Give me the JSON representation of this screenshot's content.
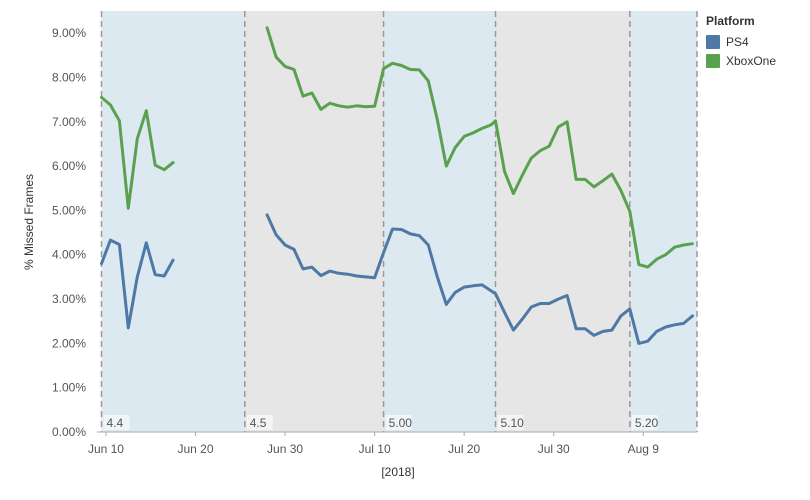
{
  "chart_data": {
    "type": "line",
    "xlabel": "[2018]",
    "ylabel": "% Missed Frames",
    "ylim": [
      0,
      9.5
    ],
    "y_ticks": [
      "0.00%",
      "1.00%",
      "2.00%",
      "3.00%",
      "4.00%",
      "5.00%",
      "6.00%",
      "7.00%",
      "8.00%",
      "9.00%"
    ],
    "x_ticks": [
      {
        "label": "Jun 10",
        "day": 10
      },
      {
        "label": "Jun 20",
        "day": 20
      },
      {
        "label": "Jun 30",
        "day": 30
      },
      {
        "label": "Jul 10",
        "day": 40
      },
      {
        "label": "Jul 20",
        "day": 50
      },
      {
        "label": "Jul 30",
        "day": 60
      },
      {
        "label": "Aug 9",
        "day": 70
      }
    ],
    "x_range": [
      9,
      76
    ],
    "grid": false,
    "legend_position": "top-right",
    "bands": [
      {
        "label": "4.4",
        "start": 9.5,
        "end": 25.5,
        "color": "#dde9f0"
      },
      {
        "label": "4.5",
        "start": 25.5,
        "end": 41,
        "color": "#e6e6e6"
      },
      {
        "label": "5.00",
        "start": 41,
        "end": 53.5,
        "color": "#dde9f0"
      },
      {
        "label": "5.10",
        "start": 53.5,
        "end": 68.5,
        "color": "#e6e6e6"
      },
      {
        "label": "5.20",
        "start": 68.5,
        "end": 76,
        "color": "#dde9f0"
      }
    ],
    "legend": {
      "title": "Platform",
      "items": [
        {
          "name": "PS4",
          "color": "#4e79a7"
        },
        {
          "name": "XboxOne",
          "color": "#59a14f"
        }
      ]
    },
    "series": [
      {
        "name": "XboxOne",
        "color": "#59a14f",
        "segments": [
          [
            [
              9.5,
              7.55
            ],
            [
              10.5,
              7.38
            ],
            [
              11.5,
              7.02
            ],
            [
              12.5,
              5.05
            ],
            [
              13.5,
              6.62
            ],
            [
              14.5,
              7.25
            ],
            [
              15.5,
              6.02
            ],
            [
              16.5,
              5.92
            ],
            [
              17.5,
              6.08
            ]
          ],
          [
            [
              28,
              9.12
            ],
            [
              29,
              8.46
            ],
            [
              30,
              8.25
            ],
            [
              31,
              8.18
            ],
            [
              32,
              7.58
            ],
            [
              33,
              7.65
            ],
            [
              34,
              7.28
            ],
            [
              35,
              7.42
            ],
            [
              36,
              7.36
            ],
            [
              37,
              7.33
            ],
            [
              38,
              7.36
            ],
            [
              39,
              7.34
            ],
            [
              40,
              7.35
            ],
            [
              41,
              8.2
            ],
            [
              42,
              8.32
            ],
            [
              43,
              8.27
            ],
            [
              44,
              8.18
            ],
            [
              45,
              8.17
            ],
            [
              46,
              7.92
            ],
            [
              47,
              7.05
            ],
            [
              48,
              6.0
            ],
            [
              49,
              6.42
            ],
            [
              50,
              6.67
            ],
            [
              51,
              6.75
            ],
            [
              52,
              6.85
            ],
            [
              53,
              6.93
            ],
            [
              53.5,
              7.02
            ],
            [
              54.5,
              5.88
            ],
            [
              55.5,
              5.38
            ],
            [
              56.5,
              5.8
            ],
            [
              57.5,
              6.18
            ],
            [
              58.5,
              6.35
            ],
            [
              59.5,
              6.45
            ],
            [
              60.5,
              6.88
            ],
            [
              61.5,
              7.0
            ],
            [
              62.5,
              5.7
            ],
            [
              63.5,
              5.7
            ],
            [
              64.5,
              5.53
            ],
            [
              65.5,
              5.67
            ],
            [
              66.5,
              5.82
            ],
            [
              67.5,
              5.45
            ],
            [
              68.5,
              4.98
            ],
            [
              69.5,
              3.78
            ],
            [
              70.5,
              3.72
            ],
            [
              71.5,
              3.9
            ],
            [
              72.5,
              4.0
            ],
            [
              73.5,
              4.17
            ],
            [
              74.5,
              4.22
            ],
            [
              75.5,
              4.25
            ]
          ]
        ]
      },
      {
        "name": "PS4",
        "color": "#4e79a7",
        "segments": [
          [
            [
              9.5,
              3.8
            ],
            [
              10.5,
              4.33
            ],
            [
              11.5,
              4.23
            ],
            [
              12.5,
              2.35
            ],
            [
              13.5,
              3.5
            ],
            [
              14.5,
              4.27
            ],
            [
              15.5,
              3.55
            ],
            [
              16.5,
              3.52
            ],
            [
              17.5,
              3.88
            ]
          ],
          [
            [
              28,
              4.9
            ],
            [
              29,
              4.45
            ],
            [
              30,
              4.22
            ],
            [
              31,
              4.12
            ],
            [
              32,
              3.68
            ],
            [
              33,
              3.72
            ],
            [
              34,
              3.53
            ],
            [
              35,
              3.63
            ],
            [
              36,
              3.58
            ],
            [
              37,
              3.56
            ],
            [
              38,
              3.52
            ],
            [
              39,
              3.5
            ],
            [
              40,
              3.48
            ],
            [
              41,
              4.05
            ],
            [
              42,
              4.58
            ],
            [
              43,
              4.57
            ],
            [
              44,
              4.47
            ],
            [
              45,
              4.43
            ],
            [
              46,
              4.22
            ],
            [
              47,
              3.5
            ],
            [
              48,
              2.88
            ],
            [
              49,
              3.15
            ],
            [
              50,
              3.27
            ],
            [
              51,
              3.3
            ],
            [
              52,
              3.32
            ],
            [
              53.5,
              3.12
            ],
            [
              54.5,
              2.7
            ],
            [
              55.5,
              2.3
            ],
            [
              56.5,
              2.55
            ],
            [
              57.5,
              2.82
            ],
            [
              58.5,
              2.9
            ],
            [
              59.5,
              2.9
            ],
            [
              60.5,
              3.0
            ],
            [
              61.5,
              3.08
            ],
            [
              62.5,
              2.33
            ],
            [
              63.5,
              2.33
            ],
            [
              64.5,
              2.18
            ],
            [
              65.5,
              2.27
            ],
            [
              66.5,
              2.3
            ],
            [
              67.5,
              2.62
            ],
            [
              68.5,
              2.78
            ],
            [
              69.5,
              2.0
            ],
            [
              70.5,
              2.05
            ],
            [
              71.5,
              2.27
            ],
            [
              72.5,
              2.37
            ],
            [
              73.5,
              2.42
            ],
            [
              74.5,
              2.45
            ],
            [
              75.5,
              2.62
            ]
          ]
        ]
      }
    ]
  }
}
